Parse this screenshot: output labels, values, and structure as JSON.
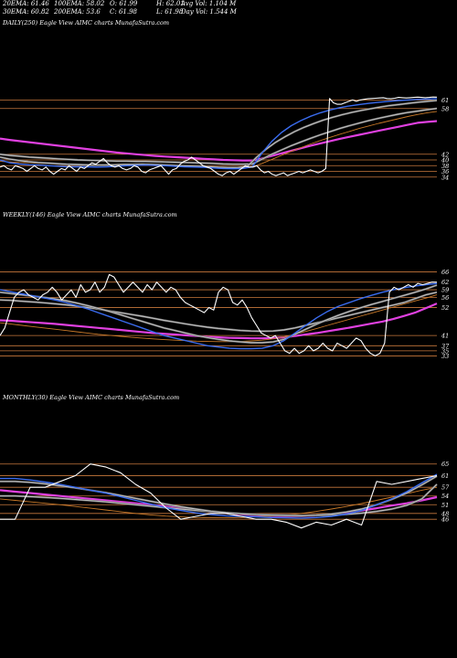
{
  "header": {
    "row1": [
      {
        "key": "ema20",
        "text": "20EMA: 61.46"
      },
      {
        "key": "ema100",
        "text": "100EMA: 58.02"
      },
      {
        "key": "open",
        "text": "O: 61.99"
      },
      {
        "key": "high",
        "text": "H: 62.01"
      },
      {
        "key": "avgvol",
        "text": "Avg Vol: 1.104  M"
      }
    ],
    "row2": [
      {
        "key": "ema30",
        "text": "30EMA: 60.82"
      },
      {
        "key": "ema200",
        "text": "200EMA: 53.6"
      },
      {
        "key": "close",
        "text": "C: 61.98"
      },
      {
        "key": "low",
        "text": "L: 61.98"
      },
      {
        "key": "dayvol",
        "text": "Day Vol: 1.544  M"
      }
    ]
  },
  "colors": {
    "background": "#000000",
    "price": "#ffffff",
    "ema_fast": "#3a6cf0",
    "ema_slow": "#e040e0",
    "ema_gray": "#c8c8c8",
    "ema_orange": "#c87828",
    "level_line": "#c8783c"
  },
  "chart_data": [
    {
      "type": "line",
      "label": "DAILY(250) Eagle   View  AIMC charts MunafaSutra.com",
      "levels": [
        61,
        58,
        42,
        40,
        38,
        36,
        34
      ],
      "y_range": [
        32,
        64
      ],
      "series": [
        {
          "role": "price",
          "values": [
            37.5,
            38,
            37,
            36.5,
            38,
            37.5,
            37,
            36,
            37,
            38,
            37,
            36.5,
            37.5,
            36,
            35,
            36,
            37,
            36.5,
            38,
            37,
            36,
            37.5,
            37,
            38,
            39,
            38.5,
            39.5,
            40.5,
            39,
            38,
            37.5,
            38,
            37,
            36.5,
            37,
            38,
            37.5,
            36,
            35.5,
            36.5,
            37,
            37.5,
            38,
            36.5,
            35,
            36.5,
            37,
            38.5,
            39.5,
            40,
            41,
            40,
            39,
            38,
            37.5,
            37,
            36,
            35,
            34.5,
            35.5,
            36,
            35,
            36,
            37,
            38,
            37.5,
            37.5,
            38,
            36.5,
            35.5,
            36,
            35,
            34.5,
            35,
            35.5,
            34.5,
            35,
            35.5,
            36,
            35.5,
            36,
            36.5,
            36,
            35.5,
            36,
            37,
            61.5,
            60,
            59.5,
            59.5,
            60,
            60.5,
            61,
            60.5,
            61,
            61.2,
            61.4,
            61.5,
            61.6,
            61.7,
            61.8,
            61.5,
            61.4,
            61.6,
            61.9,
            61.8,
            61.7,
            61.8,
            61.9,
            62,
            61.9,
            61.8,
            61.9,
            62.01,
            61.98
          ]
        },
        {
          "role": "ema20",
          "values": [
            40,
            39,
            38.6,
            38.3,
            38.2,
            38,
            37.8,
            37.6,
            37.6,
            37.6,
            37.5,
            37.6,
            37.8,
            38,
            38.1,
            38.2,
            38.1,
            38,
            37.8,
            37.6,
            37.5,
            37.4,
            37.2,
            37,
            36.9,
            37,
            37.6,
            42.5,
            46.5,
            49.6,
            52,
            53.8,
            55.3,
            56.5,
            57.5,
            58.3,
            58.9,
            59.4,
            59.8,
            60.2,
            60.5,
            60.8,
            61,
            61.2,
            61.3,
            61.46
          ]
        },
        {
          "role": "ema30",
          "values": [
            41,
            40.3,
            39.8,
            39.4,
            39.1,
            38.9,
            38.7,
            38.5,
            38.4,
            38.3,
            38.2,
            38.2,
            38.3,
            38.4,
            38.4,
            38.5,
            38.4,
            38.3,
            38.1,
            38,
            37.9,
            37.8,
            37.6,
            37.4,
            37.3,
            37.3,
            37.6,
            40.9,
            43.7,
            46.1,
            48.1,
            49.9,
            51.4,
            52.7,
            53.9,
            54.9,
            55.8,
            56.6,
            57.3,
            57.9,
            58.5,
            59,
            59.4,
            59.8,
            60.2,
            60.5,
            60.82
          ]
        },
        {
          "role": "ema100",
          "values": [
            42,
            41.6,
            41.3,
            41,
            40.8,
            40.6,
            40.4,
            40.2,
            40,
            39.9,
            39.8,
            39.7,
            39.6,
            39.6,
            39.5,
            39.5,
            39.4,
            39.3,
            39.2,
            39.1,
            39,
            38.9,
            38.8,
            38.6,
            38.5,
            38.5,
            38.6,
            40.3,
            42,
            43.5,
            45,
            46.3,
            47.6,
            48.8,
            49.9,
            51,
            52,
            52.9,
            53.8,
            54.6,
            55.3,
            56,
            56.6,
            57.1,
            57.6,
            58.02
          ]
        },
        {
          "role": "ema200",
          "values": [
            47.5,
            47,
            46.6,
            46.2,
            45.8,
            45.4,
            45,
            44.6,
            44.2,
            43.8,
            43.4,
            43,
            42.6,
            42.3,
            42,
            41.7,
            41.4,
            41.2,
            41,
            40.8,
            40.6,
            40.4,
            40.2,
            40,
            39.9,
            39.8,
            39.8,
            40.5,
            41.4,
            42.3,
            43.2,
            44.1,
            45,
            45.8,
            46.6,
            47.4,
            48.1,
            48.8,
            49.5,
            50.2,
            50.9,
            51.6,
            52.3,
            53,
            53.3,
            53.6
          ]
        },
        {
          "role": "orange",
          "values": [
            39.5,
            39.3,
            39.1,
            39,
            38.8,
            38.7,
            38.6,
            38.5,
            38.4,
            38.3,
            38.3,
            38.2,
            38.2,
            38.1,
            38.1,
            38.1,
            38,
            38,
            37.9,
            37.9,
            37.8,
            37.7,
            37.6,
            37.5,
            37.4,
            37.4,
            37.5,
            38.8,
            40.2,
            41.6,
            43,
            44.3,
            45.6,
            46.8,
            47.9,
            49,
            50,
            51,
            51.9,
            52.8,
            53.6,
            54.4,
            55.2,
            55.9,
            56.5,
            57
          ]
        }
      ]
    },
    {
      "type": "line",
      "label": "WEEKLY(146) Eagle   View  AIMC charts MunafaSutra.com",
      "levels": [
        66,
        62,
        59,
        56,
        52,
        41,
        37,
        35,
        33
      ],
      "y_range": [
        31,
        68
      ],
      "series": [
        {
          "role": "price",
          "values": [
            41,
            44,
            50,
            56,
            58,
            59,
            57,
            56,
            55,
            57,
            58,
            60,
            58,
            55,
            57,
            59,
            56,
            61,
            58,
            59,
            62,
            58,
            60,
            65,
            64,
            61,
            58,
            60,
            62,
            60,
            58,
            61,
            59,
            62,
            60,
            58,
            60,
            59,
            56,
            54,
            53,
            52,
            51,
            50,
            52,
            51,
            58,
            60,
            59,
            54,
            53,
            55,
            52,
            48,
            45,
            42,
            41,
            40,
            41,
            38,
            35,
            34,
            36,
            34,
            35,
            37,
            35,
            36,
            38,
            36,
            35,
            38,
            37,
            36,
            38,
            40,
            39,
            36,
            34,
            33,
            34,
            38,
            58,
            60,
            59,
            60,
            61,
            60,
            61.5,
            61,
            61.5,
            62,
            61.98
          ]
        },
        {
          "role": "ema20",
          "values": [
            59,
            58.2,
            57.4,
            56.6,
            55.8,
            55,
            54,
            52.8,
            51.5,
            50,
            48.5,
            47,
            45.5,
            44,
            42.5,
            41,
            40,
            39,
            38,
            37,
            36.5,
            36,
            35.8,
            35.8,
            36,
            37,
            39,
            42,
            45,
            48,
            50.5,
            52.5,
            54,
            55.5,
            56.8,
            58,
            59,
            59.8,
            60.5,
            61,
            61.46
          ]
        },
        {
          "role": "ema30",
          "values": [
            58,
            57.5,
            57,
            56.5,
            56,
            55.4,
            54.7,
            53.8,
            52.8,
            51.7,
            50.5,
            49.2,
            47.9,
            46.6,
            45.3,
            44,
            43,
            42,
            41,
            40.2,
            39.5,
            38.9,
            38.5,
            38.2,
            38.2,
            38.5,
            39.5,
            41.5,
            43.5,
            45.5,
            47.3,
            49,
            50.5,
            51.9,
            53.2,
            54.4,
            55.6,
            56.8,
            58,
            59.3,
            60.82
          ]
        },
        {
          "role": "ema100",
          "values": [
            55,
            54.8,
            54.5,
            54.2,
            53.9,
            53.5,
            53.1,
            52.6,
            52,
            51.4,
            50.7,
            50,
            49.3,
            48.6,
            47.8,
            47,
            46.3,
            45.6,
            44.9,
            44.3,
            43.8,
            43.4,
            43,
            42.8,
            42.7,
            42.8,
            43.2,
            44,
            45,
            46,
            47,
            48,
            49,
            50,
            51,
            52,
            53,
            54,
            55.5,
            57,
            58.02
          ]
        },
        {
          "role": "ema200",
          "values": [
            47,
            46.8,
            46.5,
            46.2,
            45.9,
            45.6,
            45.2,
            44.8,
            44.4,
            44,
            43.6,
            43.2,
            42.8,
            42.4,
            42,
            41.7,
            41.4,
            41.1,
            40.8,
            40.5,
            40.3,
            40.1,
            40,
            39.9,
            39.9,
            40,
            40.3,
            40.8,
            41.4,
            42,
            42.7,
            43.4,
            44.1,
            44.9,
            45.7,
            46.5,
            47.5,
            48.7,
            50,
            51.8,
            53.6
          ]
        },
        {
          "role": "orange",
          "values": [
            46,
            45.5,
            45,
            44.5,
            44,
            43.5,
            43,
            42.5,
            42,
            41.5,
            41.1,
            40.7,
            40.3,
            40,
            39.7,
            39.4,
            39.2,
            39,
            38.8,
            38.7,
            38.6,
            38.6,
            38.7,
            38.9,
            39.2,
            39.7,
            40.5,
            41.5,
            42.6,
            43.8,
            45,
            46.2,
            47.4,
            48.6,
            49.8,
            51,
            52.2,
            53.4,
            54.6,
            55.7,
            57
          ]
        }
      ]
    },
    {
      "type": "line",
      "label": "MONTHLY(30) Eagle   View  AIMC charts MunafaSutra.com",
      "levels": [
        65,
        61,
        57,
        54,
        51,
        48,
        46
      ],
      "y_range": [
        36,
        69
      ],
      "series": [
        {
          "role": "price",
          "values": [
            46,
            46,
            57,
            57,
            59,
            61,
            65,
            64,
            62,
            58,
            55,
            50,
            46,
            47,
            48,
            48,
            47,
            46,
            46,
            45,
            43,
            45,
            44,
            46,
            44,
            59,
            58,
            59,
            60,
            61
          ]
        },
        {
          "role": "ema20",
          "values": [
            60,
            60,
            59.5,
            58.8,
            58,
            57,
            56,
            55,
            53.8,
            52.5,
            51.2,
            50,
            49,
            48.2,
            47.6,
            47.2,
            47,
            46.8,
            46.6,
            46.5,
            46.4,
            46.6,
            47,
            47.8,
            49,
            51,
            53,
            55.5,
            58.5,
            61.46
          ]
        },
        {
          "role": "ema30",
          "values": [
            59,
            59,
            58.7,
            58.2,
            57.5,
            56.8,
            56,
            55.2,
            54.2,
            53.2,
            52.2,
            51.2,
            50.3,
            49.5,
            48.8,
            48.3,
            47.9,
            47.6,
            47.4,
            47.3,
            47.2,
            47.4,
            47.8,
            48.5,
            49.5,
            51,
            52.8,
            55,
            57.8,
            60.82
          ]
        },
        {
          "role": "ema100",
          "values": [
            54,
            54,
            53.8,
            53.5,
            53.2,
            52.8,
            52.4,
            52,
            51.5,
            51,
            50.5,
            50,
            49.5,
            49,
            48.6,
            48.2,
            47.9,
            47.7,
            47.5,
            47.4,
            47.3,
            47.3,
            47.4,
            47.7,
            48.1,
            48.7,
            49.5,
            50.8,
            53,
            58.02
          ]
        },
        {
          "role": "ema200",
          "values": [
            56,
            55.5,
            55,
            54.5,
            54,
            53.5,
            53,
            52.5,
            52,
            51.5,
            51,
            50.4,
            49.8,
            49.2,
            48.6,
            48.1,
            47.7,
            47.4,
            47.2,
            47.1,
            47.1,
            47.3,
            47.7,
            48.3,
            49,
            49.8,
            50.7,
            51.5,
            52.5,
            53.6
          ]
        },
        {
          "role": "orange",
          "values": [
            53,
            52.5,
            52,
            51.5,
            51,
            50.4,
            49.8,
            49.2,
            48.6,
            48,
            47.5,
            47.1,
            46.8,
            46.6,
            46.5,
            46.5,
            46.6,
            46.8,
            47.1,
            47.5,
            48,
            48.7,
            49.5,
            50.4,
            51.4,
            52.5,
            53.6,
            54.8,
            56,
            57
          ]
        }
      ]
    }
  ]
}
